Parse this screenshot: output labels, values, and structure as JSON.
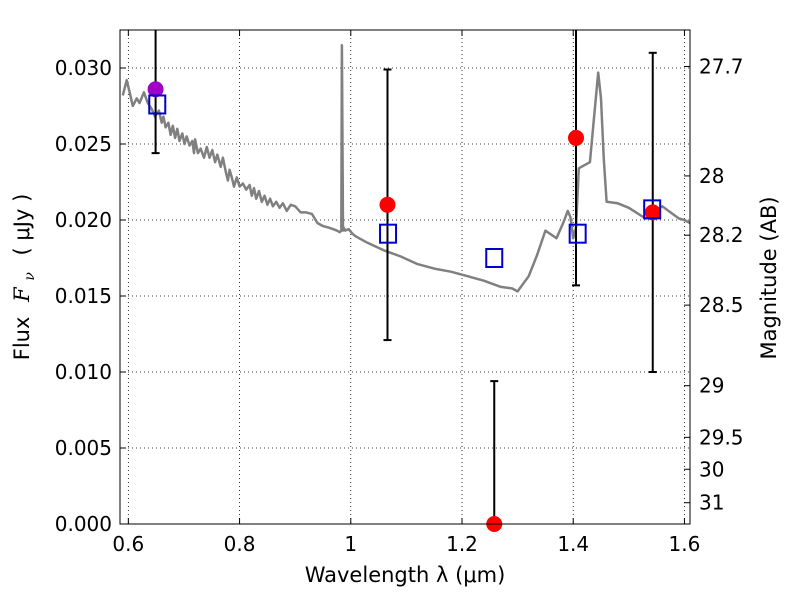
{
  "chart_data": {
    "type": "scatter",
    "xlabel": "Wavelength  λ (μm)",
    "ylabel_parts": [
      "Flux",
      "F",
      "ν",
      "( μJy )"
    ],
    "ylabel_right": "Magnitude (AB)",
    "xlim": [
      0.585,
      1.61
    ],
    "ylim": [
      0.0,
      0.0325
    ],
    "grid": true,
    "x_ticks": [
      0.6,
      0.8,
      1.0,
      1.2,
      1.4,
      1.6
    ],
    "x_tick_labels": [
      "0.6",
      "0.8",
      "1",
      "1.2",
      "1.4",
      "1.6"
    ],
    "y_ticks": [
      0.0,
      0.005,
      0.01,
      0.015,
      0.02,
      0.025,
      0.03
    ],
    "y_tick_labels": [
      "0.000",
      "0.005",
      "0.010",
      "0.015",
      "0.020",
      "0.025",
      "0.030"
    ],
    "right_ticks": [
      {
        "label": "27.7",
        "flux": 0.0301
      },
      {
        "label": "28",
        "flux": 0.0229
      },
      {
        "label": "28.2",
        "flux": 0.019
      },
      {
        "label": "28.5",
        "flux": 0.0144
      },
      {
        "label": "29",
        "flux": 0.0091
      },
      {
        "label": "29.5",
        "flux": 0.0057
      },
      {
        "label": "30",
        "flux": 0.0036
      },
      {
        "label": "31",
        "flux": 0.0014
      }
    ],
    "colors": {
      "model": "#808080",
      "observed": "#ff0000",
      "observed_first": "#a000c8",
      "model_flux_box": "#0000cc",
      "error_bar": "#000000"
    },
    "model_spectrum": {
      "x": [
        0.59,
        0.597,
        0.603,
        0.608,
        0.615,
        0.62,
        0.628,
        0.635,
        0.642,
        0.648,
        0.655,
        0.66,
        0.663,
        0.667,
        0.672,
        0.676,
        0.68,
        0.684,
        0.688,
        0.692,
        0.697,
        0.701,
        0.705,
        0.71,
        0.715,
        0.718,
        0.72,
        0.725,
        0.73,
        0.736,
        0.741,
        0.746,
        0.751,
        0.756,
        0.76,
        0.766,
        0.77,
        0.775,
        0.779,
        0.782,
        0.786,
        0.79,
        0.795,
        0.8,
        0.806,
        0.812,
        0.818,
        0.822,
        0.826,
        0.83,
        0.835,
        0.84,
        0.845,
        0.85,
        0.855,
        0.86,
        0.866,
        0.872,
        0.878,
        0.885,
        0.892,
        0.9,
        0.91,
        0.92,
        0.93,
        0.94,
        0.95,
        0.96,
        0.968,
        0.975,
        0.98,
        0.983,
        0.984,
        0.986,
        0.987,
        0.99,
        0.996,
        1.003,
        1.01,
        1.03,
        1.06,
        1.09,
        1.12,
        1.15,
        1.18,
        1.21,
        1.24,
        1.27,
        1.29,
        1.3,
        1.32,
        1.335,
        1.35,
        1.37,
        1.383,
        1.39,
        1.395,
        1.4,
        1.405,
        1.41,
        1.43,
        1.445,
        1.45,
        1.455,
        1.46,
        1.48,
        1.5,
        1.53,
        1.56,
        1.59,
        1.6,
        1.61
      ],
      "y": [
        0.0282,
        0.0292,
        0.0283,
        0.0275,
        0.028,
        0.0277,
        0.0284,
        0.0277,
        0.0273,
        0.0268,
        0.0272,
        0.0264,
        0.0268,
        0.0261,
        0.0264,
        0.0256,
        0.0262,
        0.0254,
        0.026,
        0.0252,
        0.0257,
        0.025,
        0.0255,
        0.0249,
        0.0252,
        0.0244,
        0.0253,
        0.0244,
        0.0247,
        0.0241,
        0.0248,
        0.0241,
        0.0246,
        0.0238,
        0.0243,
        0.0235,
        0.0241,
        0.0232,
        0.0226,
        0.0233,
        0.0228,
        0.0222,
        0.0228,
        0.0222,
        0.0224,
        0.022,
        0.0223,
        0.0216,
        0.0221,
        0.0214,
        0.0219,
        0.0212,
        0.0216,
        0.021,
        0.0214,
        0.0209,
        0.0212,
        0.0208,
        0.0211,
        0.0206,
        0.021,
        0.0209,
        0.0205,
        0.0205,
        0.0204,
        0.0198,
        0.0196,
        0.0195,
        0.0194,
        0.0193,
        0.0192,
        0.0193,
        0.0315,
        0.0193,
        0.0195,
        0.0193,
        0.0194,
        0.0191,
        0.0189,
        0.0185,
        0.018,
        0.0176,
        0.0171,
        0.0168,
        0.0166,
        0.0163,
        0.016,
        0.0156,
        0.0155,
        0.0153,
        0.0163,
        0.0177,
        0.0193,
        0.0188,
        0.0199,
        0.0206,
        0.0202,
        0.0188,
        0.0195,
        0.0234,
        0.0238,
        0.0297,
        0.028,
        0.024,
        0.0212,
        0.0211,
        0.0208,
        0.0201,
        0.0209,
        0.0201,
        0.02,
        0.0198
      ]
    },
    "observed": [
      {
        "x": 0.649,
        "y": 0.0286,
        "yerr_lo": 0.0244,
        "yerr_hi": 0.0325
      },
      {
        "x": 1.066,
        "y": 0.021,
        "yerr_lo": 0.0121,
        "yerr_hi": 0.0299
      },
      {
        "x": 1.258,
        "y": 0.0,
        "yerr_lo": 0.0,
        "yerr_hi": 0.0094
      },
      {
        "x": 1.405,
        "y": 0.0254,
        "yerr_lo": 0.0157,
        "yerr_hi": 0.0325
      },
      {
        "x": 1.543,
        "y": 0.0205,
        "yerr_lo": 0.01,
        "yerr_hi": 0.031
      }
    ],
    "model_flux": [
      {
        "x": 0.652,
        "y": 0.0276
      },
      {
        "x": 1.067,
        "y": 0.0191
      },
      {
        "x": 1.258,
        "y": 0.0175
      },
      {
        "x": 1.408,
        "y": 0.0191
      },
      {
        "x": 1.542,
        "y": 0.0207
      }
    ]
  }
}
